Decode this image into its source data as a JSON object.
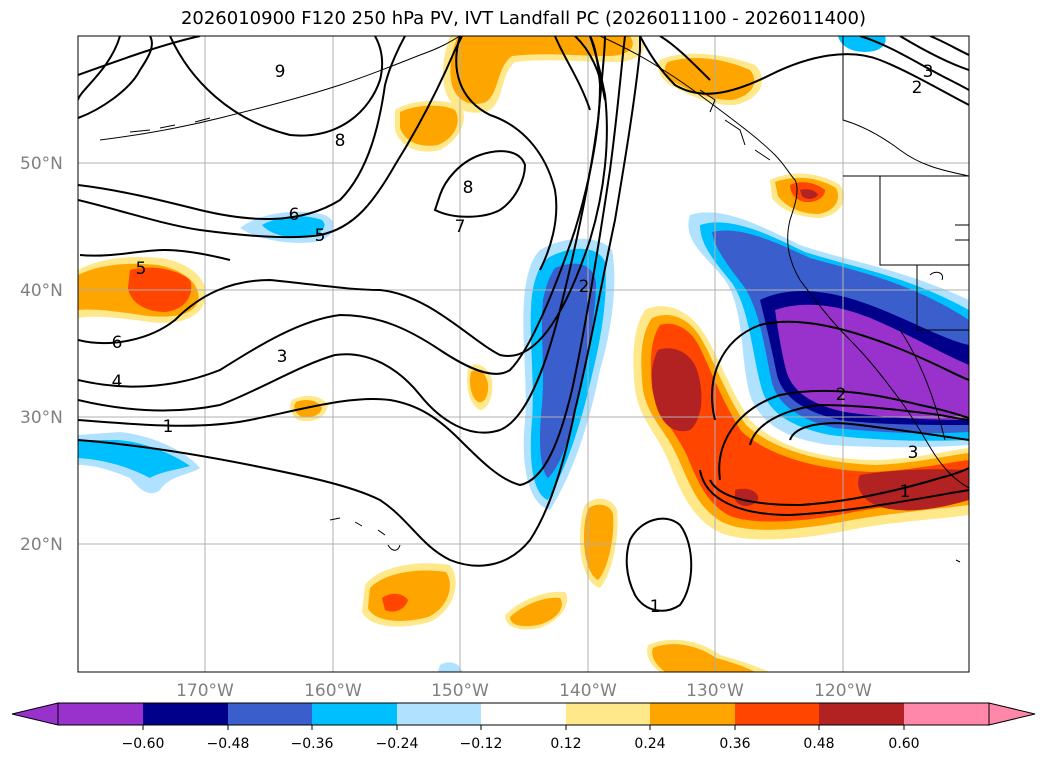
{
  "title": "2026010900 F120 250 hPa PV, IVT Landfall PC (2026011100 - 2026011400)",
  "lat_labels": [
    "50°N",
    "40°N",
    "30°N",
    "20°N"
  ],
  "lon_labels": [
    "170°W",
    "160°W",
    "150°W",
    "140°W",
    "130°W",
    "120°W"
  ],
  "pv_contour_labels": [
    "9",
    "8",
    "8",
    "7",
    "6",
    "5",
    "5",
    "6",
    "4",
    "3",
    "2",
    "1",
    "2",
    "1",
    "1",
    "3",
    "2",
    "3"
  ],
  "colorbar": {
    "ticks": [
      "−0.60",
      "−0.48",
      "−0.36",
      "−0.24",
      "−0.12",
      "0.12",
      "0.24",
      "0.36",
      "0.48",
      "0.60"
    ],
    "colors": [
      "#9932cc",
      "#00008b",
      "#3a5fcd",
      "#00bfff",
      "#b0e2ff",
      "#ffffff",
      "#ffe88a",
      "#ffa500",
      "#ff4500",
      "#b22222",
      "#ff88aa"
    ]
  }
}
